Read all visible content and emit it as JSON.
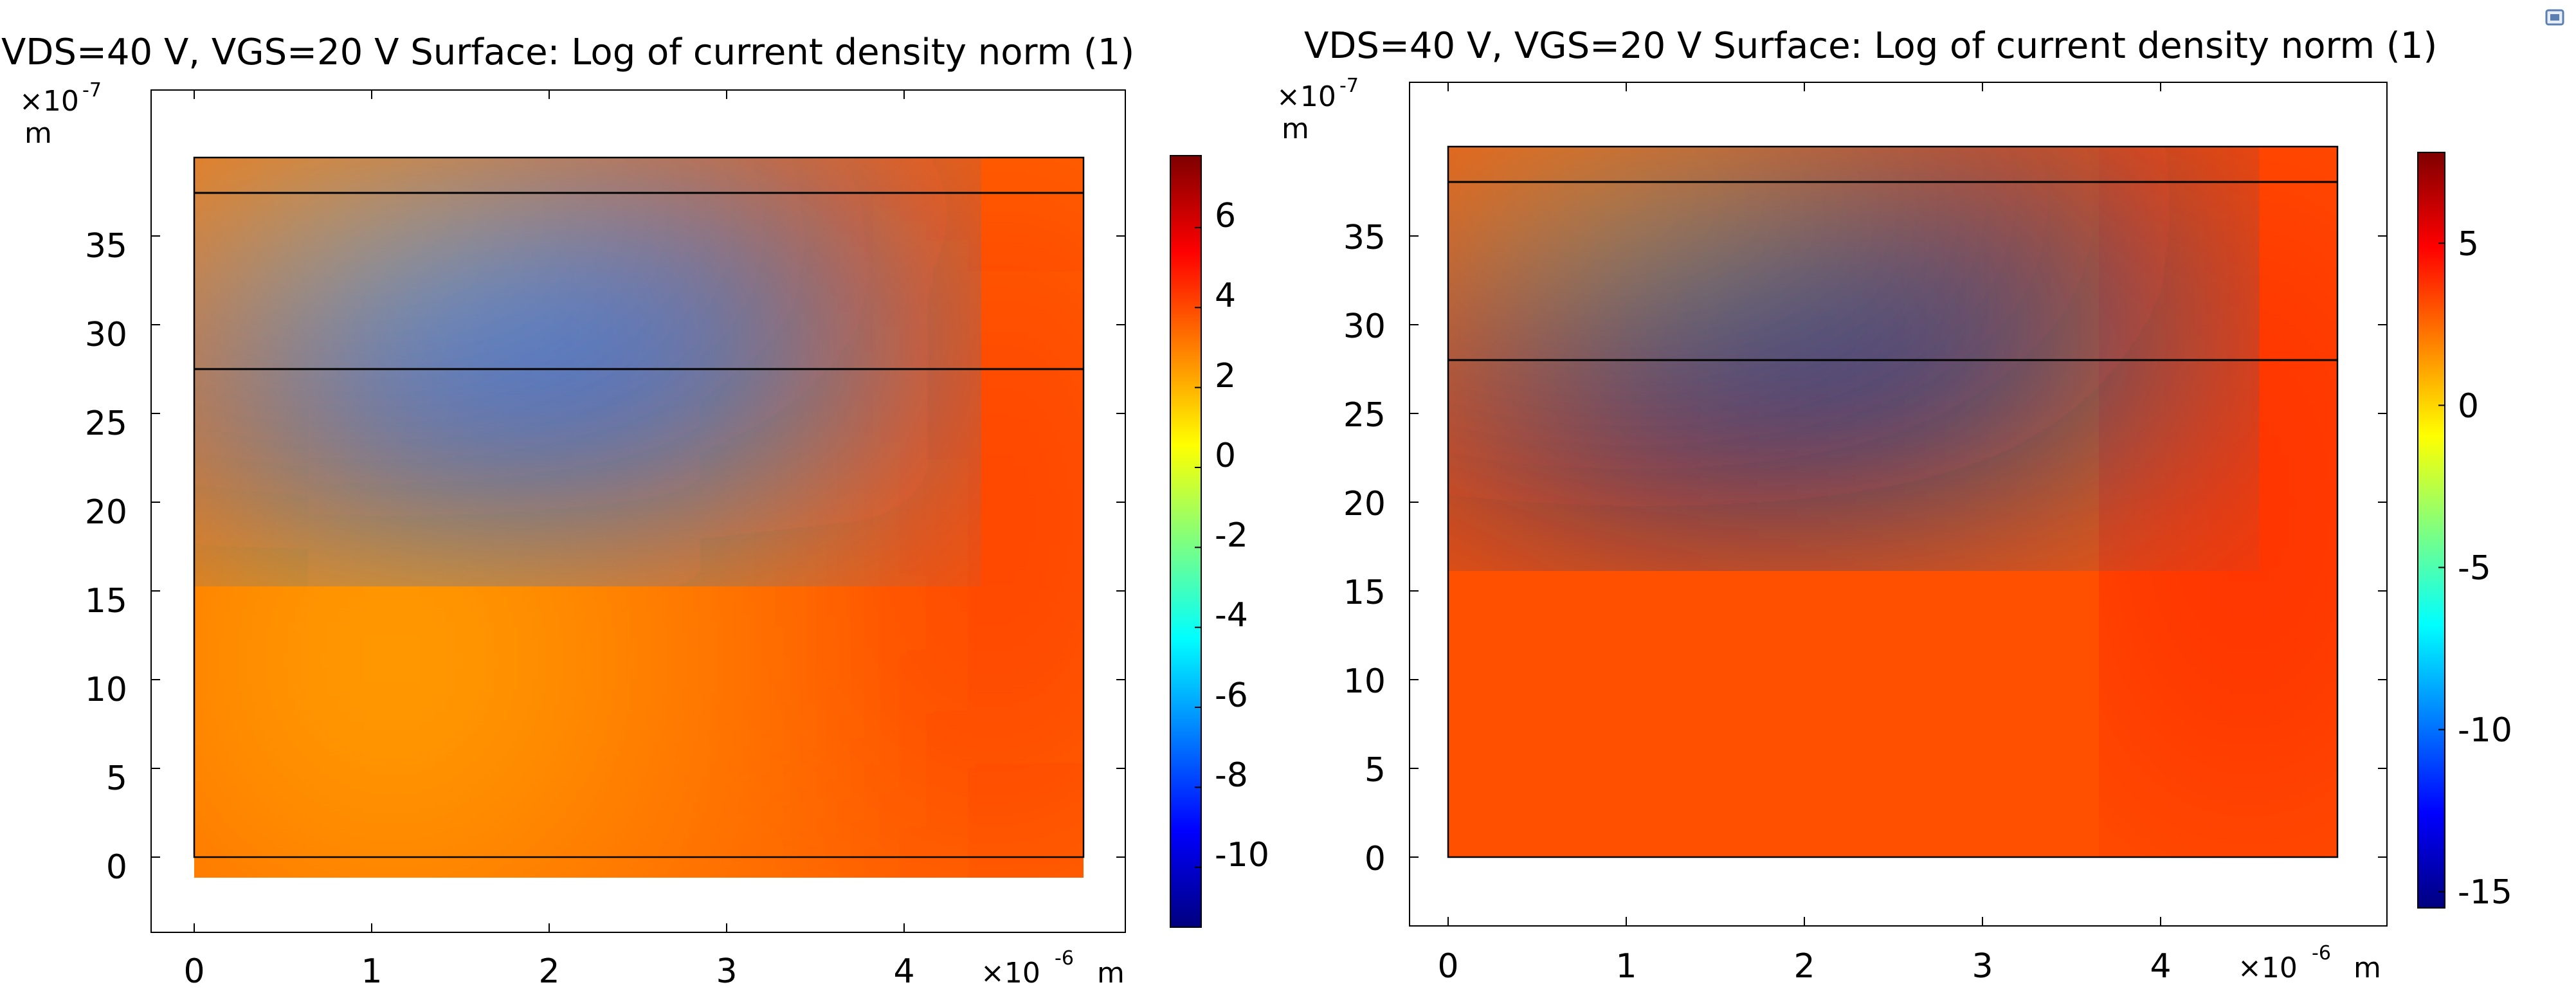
{
  "corner_icon": "window-restore-icon",
  "colors": {
    "frame": "#000000",
    "background": "#ffffff",
    "colormap": [
      "#00007f",
      "#0000ff",
      "#007fff",
      "#00ffff",
      "#7fff7f",
      "#ffff00",
      "#ff7f00",
      "#ff0000",
      "#7f0000"
    ]
  },
  "chart_data": [
    {
      "type": "heatmap",
      "title": "VDS=40 V, VGS=20 V  Surface: Log of current density norm (1)",
      "x_multiplier": "×10",
      "x_exponent": "-6",
      "x_unit": "m",
      "y_multiplier": "×10",
      "y_exponent": "-7",
      "y_unit": "m",
      "xlim": [
        -0.25,
        5.25
      ],
      "ylim": [
        -4,
        43
      ],
      "x_ticks": [
        0,
        1,
        2,
        3,
        4
      ],
      "x_tick_labels": [
        "0",
        "1",
        "2",
        "3",
        "4"
      ],
      "y_ticks": [
        0,
        5,
        10,
        15,
        20,
        25,
        30,
        35
      ],
      "y_tick_labels": [
        "0",
        "5",
        "10",
        "15",
        "20",
        "25",
        "30",
        "35"
      ],
      "domain_x": [
        0,
        4.95
      ],
      "domain_y": [
        0.3,
        39.8
      ],
      "interface_lines_y": [
        37.8,
        28
      ],
      "colorbar": {
        "min": -11.5,
        "max": 7.8,
        "ticks": [
          -10,
          -8,
          -6,
          -4,
          -2,
          0,
          2,
          4,
          6
        ],
        "tick_labels": [
          "-10",
          "-8",
          "-6",
          "-4",
          "-2",
          "0",
          "2",
          "4",
          "6"
        ]
      },
      "regions": {
        "substrate_value": 4.8,
        "depletion_value": -7.3,
        "channel_value": -1.5,
        "top_contact_value": 7.5,
        "right_contact_value": 5.6
      }
    },
    {
      "type": "heatmap",
      "title": "VDS=40 V, VGS=20 V  Surface: Log of current density norm (1)",
      "x_multiplier": "×10",
      "x_exponent": "-6",
      "x_unit": "m",
      "y_multiplier": "×10",
      "y_exponent": "-7",
      "y_unit": "m",
      "xlim": [
        -0.25,
        5.25
      ],
      "ylim": [
        -4,
        43
      ],
      "x_ticks": [
        0,
        1,
        2,
        3,
        4
      ],
      "x_tick_labels": [
        "0",
        "1",
        "2",
        "3",
        "4"
      ],
      "y_ticks": [
        0,
        5,
        10,
        15,
        20,
        25,
        30,
        35
      ],
      "y_tick_labels": [
        "0",
        "5",
        "10",
        "15",
        "20",
        "25",
        "30",
        "35"
      ],
      "domain_x": [
        0,
        5
      ],
      "domain_y": [
        0,
        40
      ],
      "interface_lines_y": [
        38,
        28
      ],
      "colorbar": {
        "min": -15.5,
        "max": 7.8,
        "ticks": [
          -15,
          -10,
          -5,
          0,
          5
        ],
        "tick_labels": [
          "-15",
          "-10",
          "-5",
          "0",
          "5"
        ]
      },
      "regions": {
        "substrate_value": 5.5,
        "depletion_value": -15.3,
        "channel_value": -2,
        "top_contact_value": 7.5,
        "right_contact_value": 6
      }
    }
  ]
}
